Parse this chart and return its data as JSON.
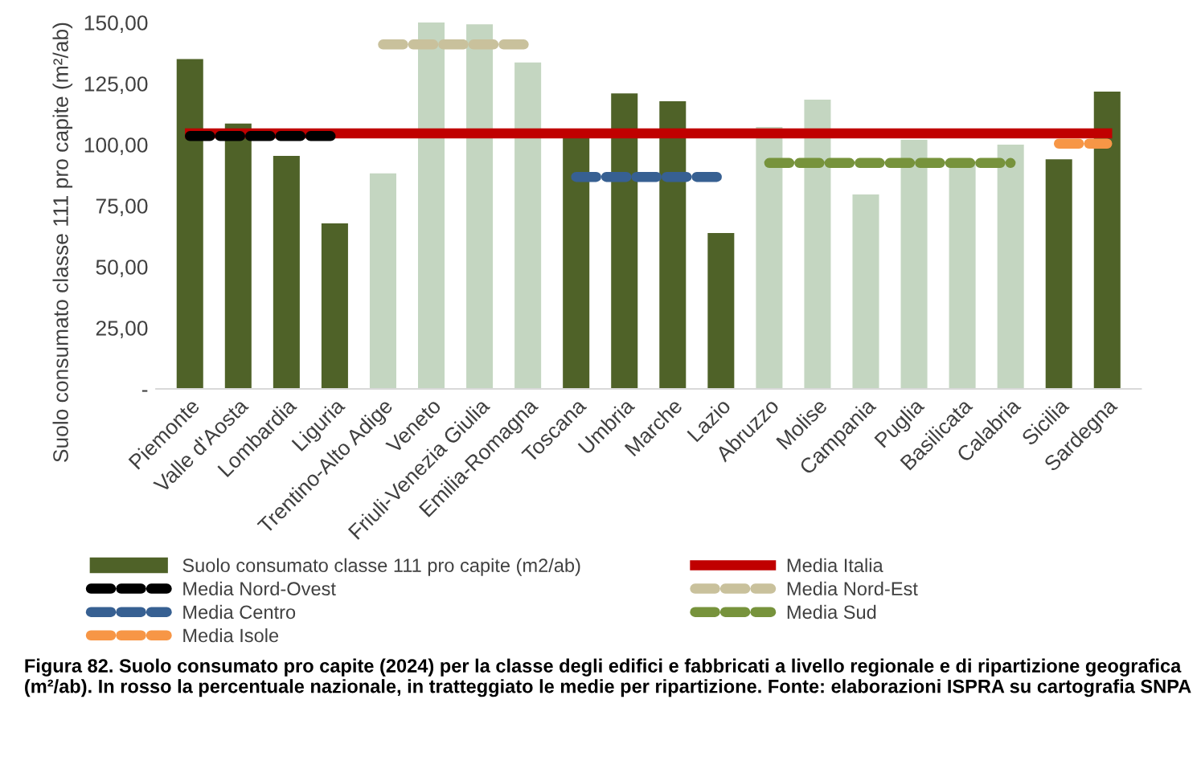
{
  "chart_data": {
    "type": "bar",
    "ylabel": "Suolo consumato classe 111 pro capite (m²/ab)",
    "categories": [
      "Piemonte",
      "Valle d'Aosta",
      "Lombardia",
      "Liguria",
      "Trentino-Alto Adige",
      "Veneto",
      "Friuli-Venezia Giulia",
      "Emilia-Romagna",
      "Toscana",
      "Umbria",
      "Marche",
      "Lazio",
      "Abruzzo",
      "Molise",
      "Campania",
      "Puglia",
      "Basilicata",
      "Calabria",
      "Sicilia",
      "Sardegna"
    ],
    "series": [
      {
        "name": "Suolo consumato classe 111 pro capite (m2/ab)",
        "colors": [
          "#4f6228",
          "#4f6228",
          "#4f6228",
          "#4f6228",
          "#c4d6c1",
          "#c4d6c1",
          "#c4d6c1",
          "#c4d6c1",
          "#4f6228",
          "#4f6228",
          "#4f6228",
          "#4f6228",
          "#c4d6c1",
          "#c4d6c1",
          "#c4d6c1",
          "#c4d6c1",
          "#c4d6c1",
          "#c4d6c1",
          "#4f6228",
          "#4f6228"
        ],
        "values": [
          135,
          108.6,
          95.4,
          67.8,
          88.2,
          150,
          149.3,
          133.6,
          103,
          121,
          117.8,
          63.8,
          107.2,
          118.4,
          79.6,
          102,
          92,
          100,
          94,
          121.7
        ]
      },
      {
        "name": "Media Italia",
        "type": "line",
        "color": "#c00000",
        "line_style": "solid",
        "values": [
          104.6,
          104.6,
          104.6,
          104.6,
          104.6,
          104.6,
          104.6,
          104.6,
          104.6,
          104.6,
          104.6,
          104.6,
          104.6,
          104.6,
          104.6,
          104.6,
          104.6,
          104.6,
          104.6,
          104.6
        ]
      },
      {
        "name": "Media Nord-Ovest",
        "type": "line",
        "color": "#000000",
        "line_style": "dashed",
        "values": [
          103.5,
          103.5,
          103.5,
          103.5,
          null,
          null,
          null,
          null,
          null,
          null,
          null,
          null,
          null,
          null,
          null,
          null,
          null,
          null,
          null,
          null
        ]
      },
      {
        "name": "Media Nord-Est",
        "type": "line",
        "color": "#c9c19c",
        "line_style": "dashed",
        "values": [
          null,
          null,
          null,
          null,
          141,
          141,
          141,
          141,
          null,
          null,
          null,
          null,
          null,
          null,
          null,
          null,
          null,
          null,
          null,
          null
        ]
      },
      {
        "name": "Media Centro",
        "type": "line",
        "color": "#376092",
        "line_style": "dashed",
        "values": [
          null,
          null,
          null,
          null,
          null,
          null,
          null,
          null,
          86.8,
          86.8,
          86.8,
          86.8,
          null,
          null,
          null,
          null,
          null,
          null,
          null,
          null
        ]
      },
      {
        "name": "Media Sud",
        "type": "line",
        "color": "#77933c",
        "line_style": "dashed",
        "values": [
          null,
          null,
          null,
          null,
          null,
          null,
          null,
          null,
          null,
          null,
          null,
          null,
          92.5,
          92.5,
          92.5,
          92.5,
          92.5,
          92.5,
          null,
          null
        ]
      },
      {
        "name": "Media Isole",
        "type": "line",
        "color": "#f79646",
        "line_style": "dashed",
        "values": [
          null,
          null,
          null,
          null,
          null,
          null,
          null,
          null,
          null,
          null,
          null,
          null,
          null,
          null,
          null,
          null,
          null,
          null,
          100.4,
          100.4
        ]
      }
    ],
    "ylim": [
      0,
      150
    ],
    "yticks": [
      {
        "value": 0,
        "label": "-"
      },
      {
        "value": 25,
        "label": "25,00"
      },
      {
        "value": 50,
        "label": "50,00"
      },
      {
        "value": 75,
        "label": "75,00"
      },
      {
        "value": 100,
        "label": "100,00"
      },
      {
        "value": 125,
        "label": "125,00"
      },
      {
        "value": 150,
        "label": "150,00"
      }
    ],
    "grid": false,
    "legend": "bottom",
    "annotations": [
      "Figura 82. Suolo consumato pro capite (2024) per la classe degli edifici e fabbricati a livello regionale e di ripartizione geografica (m²/ab). In rosso la percentuale nazionale, in tratteggiato le medie per ripartizione. Fonte: elaborazioni ISPRA su cartografia SNPA"
    ]
  }
}
